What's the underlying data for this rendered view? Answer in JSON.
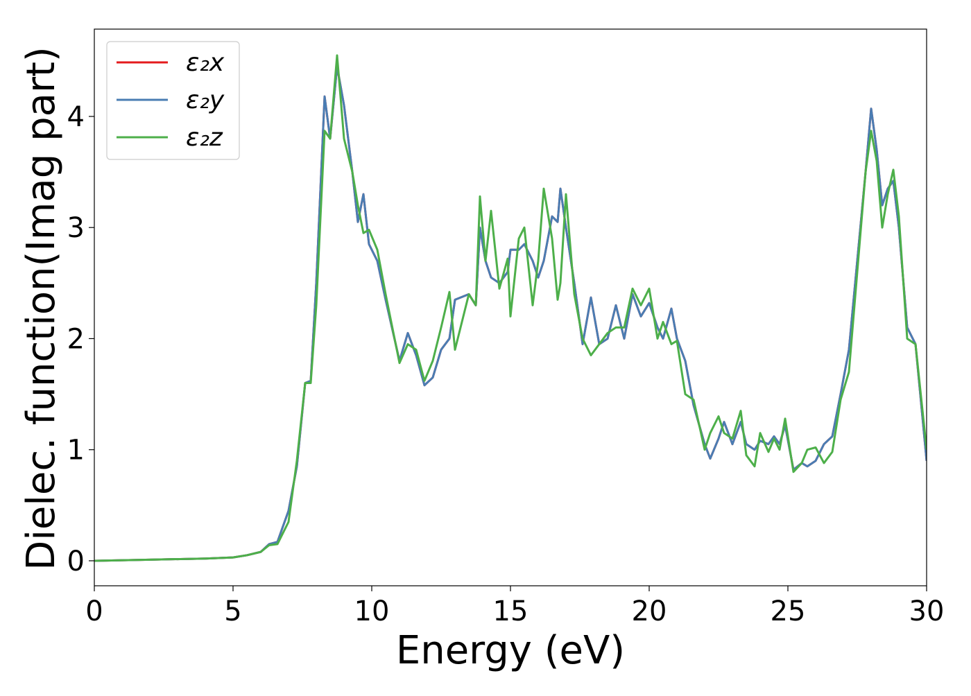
{
  "chart_data": {
    "type": "line",
    "xlabel": "Energy (eV)",
    "ylabel": "Dielec. function(Imag part)",
    "x": [
      0,
      2,
      4,
      5,
      5.5,
      6,
      6.3,
      6.6,
      7,
      7.3,
      7.6,
      7.8,
      8.0,
      8.3,
      8.5,
      8.75,
      9.0,
      9.3,
      9.5,
      9.7,
      9.9,
      10.2,
      10.5,
      11,
      11.3,
      11.6,
      11.9,
      12.2,
      12.5,
      12.8,
      13,
      13.5,
      13.75,
      13.9,
      14.1,
      14.3,
      14.6,
      14.9,
      15.0,
      15.3,
      15.5,
      15.8,
      16.0,
      16.2,
      16.5,
      16.7,
      16.8,
      17.0,
      17.3,
      17.6,
      17.9,
      18.2,
      18.5,
      18.8,
      19.1,
      19.4,
      19.7,
      20.0,
      20.3,
      20.5,
      20.8,
      21.0,
      21.3,
      21.6,
      22.0,
      22.2,
      22.5,
      22.7,
      23.0,
      23.3,
      23.5,
      23.8,
      24.0,
      24.3,
      24.5,
      24.7,
      24.9,
      25.2,
      25.5,
      25.7,
      26.0,
      26.3,
      26.6,
      26.9,
      27.2,
      27.5,
      27.8,
      28.0,
      28.2,
      28.4,
      28.6,
      28.8,
      29.0,
      29.3,
      29.6,
      30
    ],
    "series": [
      {
        "name": "ε₂x",
        "color": "#e41a1c",
        "values": [
          0,
          0.01,
          0.02,
          0.03,
          0.05,
          0.08,
          0.15,
          0.17,
          0.45,
          0.85,
          1.6,
          1.62,
          2.5,
          4.18,
          3.8,
          4.45,
          4.1,
          3.5,
          3.05,
          3.3,
          2.85,
          2.7,
          2.35,
          1.8,
          2.05,
          1.85,
          1.58,
          1.65,
          1.9,
          2.0,
          2.35,
          2.4,
          2.3,
          3.0,
          2.7,
          2.55,
          2.5,
          2.6,
          2.8,
          2.8,
          2.85,
          2.7,
          2.55,
          2.7,
          3.1,
          3.05,
          3.35,
          3.0,
          2.5,
          1.95,
          2.37,
          1.95,
          2.0,
          2.3,
          2.0,
          2.4,
          2.2,
          2.32,
          2.1,
          2.0,
          2.27,
          2.0,
          1.8,
          1.4,
          1.05,
          0.92,
          1.1,
          1.25,
          1.05,
          1.25,
          1.05,
          1.0,
          1.08,
          1.05,
          1.12,
          1.05,
          1.22,
          0.82,
          0.88,
          0.85,
          0.9,
          1.05,
          1.12,
          1.5,
          1.9,
          2.7,
          3.5,
          4.07,
          3.7,
          3.2,
          3.35,
          3.42,
          3.0,
          2.1,
          1.95,
          0.9
        ]
      },
      {
        "name": "ε₂y",
        "color": "#4a7db3",
        "values": [
          0,
          0.01,
          0.02,
          0.03,
          0.05,
          0.08,
          0.15,
          0.17,
          0.45,
          0.85,
          1.6,
          1.62,
          2.5,
          4.18,
          3.8,
          4.45,
          4.1,
          3.5,
          3.05,
          3.3,
          2.85,
          2.7,
          2.35,
          1.8,
          2.05,
          1.85,
          1.58,
          1.65,
          1.9,
          2.0,
          2.35,
          2.4,
          2.3,
          3.0,
          2.7,
          2.55,
          2.5,
          2.6,
          2.8,
          2.8,
          2.85,
          2.7,
          2.55,
          2.7,
          3.1,
          3.05,
          3.35,
          3.0,
          2.5,
          1.95,
          2.37,
          1.95,
          2.0,
          2.3,
          2.0,
          2.4,
          2.2,
          2.32,
          2.1,
          2.0,
          2.27,
          2.0,
          1.8,
          1.4,
          1.05,
          0.92,
          1.1,
          1.25,
          1.05,
          1.25,
          1.05,
          1.0,
          1.08,
          1.05,
          1.12,
          1.05,
          1.22,
          0.82,
          0.88,
          0.85,
          0.9,
          1.05,
          1.12,
          1.5,
          1.9,
          2.7,
          3.5,
          4.07,
          3.7,
          3.2,
          3.35,
          3.42,
          3.0,
          2.1,
          1.95,
          0.9
        ]
      },
      {
        "name": "ε₂z",
        "color": "#4daf4a",
        "values": [
          0,
          0.01,
          0.02,
          0.03,
          0.05,
          0.08,
          0.14,
          0.15,
          0.35,
          0.9,
          1.6,
          1.6,
          2.3,
          3.87,
          3.8,
          4.55,
          3.8,
          3.5,
          3.2,
          2.95,
          2.98,
          2.8,
          2.4,
          1.78,
          1.95,
          1.9,
          1.62,
          1.8,
          2.1,
          2.42,
          1.9,
          2.4,
          2.3,
          3.28,
          2.7,
          3.15,
          2.45,
          2.72,
          2.2,
          2.9,
          3.0,
          2.3,
          2.7,
          3.35,
          2.9,
          2.35,
          2.5,
          3.3,
          2.4,
          2.0,
          1.85,
          1.95,
          2.05,
          2.1,
          2.1,
          2.45,
          2.3,
          2.45,
          2.0,
          2.15,
          1.95,
          1.98,
          1.5,
          1.45,
          1.0,
          1.15,
          1.3,
          1.15,
          1.1,
          1.35,
          0.95,
          0.85,
          1.15,
          0.98,
          1.1,
          1.0,
          1.28,
          0.8,
          0.88,
          1.0,
          1.02,
          0.88,
          0.98,
          1.45,
          1.7,
          2.6,
          3.5,
          3.87,
          3.6,
          3.0,
          3.3,
          3.52,
          3.1,
          2.0,
          1.95,
          1.0
        ]
      }
    ],
    "xlim": [
      0,
      30
    ],
    "xticks": [
      0,
      5,
      10,
      15,
      20,
      25,
      30
    ],
    "ylim": [
      -0.225,
      4.786
    ],
    "yticks": [
      0,
      1,
      2,
      3,
      4
    ],
    "grid": false,
    "legend": "upper left"
  }
}
